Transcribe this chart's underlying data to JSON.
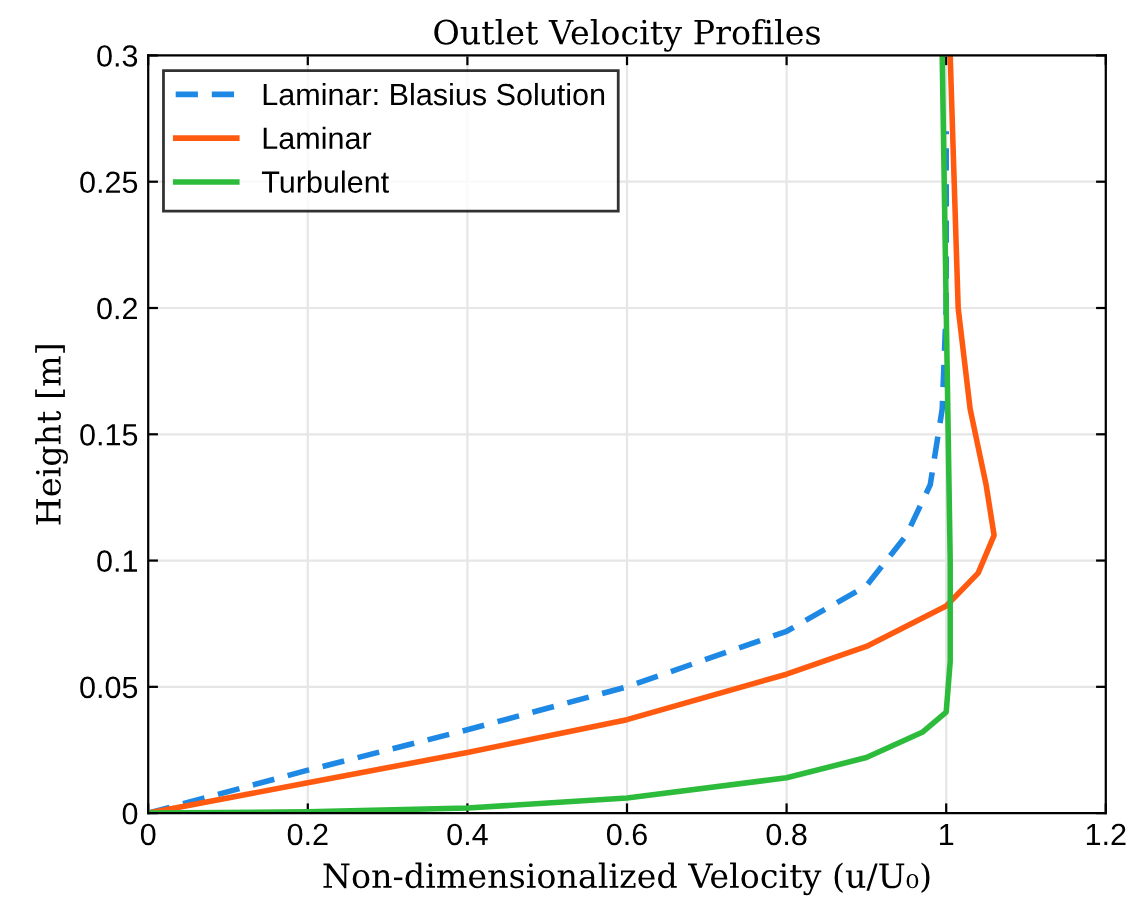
{
  "chart_data": {
    "type": "line",
    "title": "Outlet Velocity Profiles",
    "xlabel": "Non-dimensionalized Velocity (u/U₀)",
    "ylabel": "Height [m]",
    "xlim": [
      0,
      1.2
    ],
    "xticks": [
      0,
      0.2,
      0.4,
      0.6,
      0.8,
      1,
      1.2
    ],
    "ylim": [
      0,
      0.3
    ],
    "yticks": [
      0,
      0.05,
      0.1,
      0.15,
      0.2,
      0.25,
      0.3
    ],
    "grid": true,
    "legend": "top left",
    "series": [
      {
        "name": "Laminar: Blasius Solution",
        "color": "#1e88e5",
        "line_style": "dashed",
        "x": [
          0,
          0.2,
          0.4,
          0.6,
          0.8,
          0.9,
          0.95,
          0.98,
          0.995,
          1.0,
          1.0
        ],
        "values": [
          0,
          0.017,
          0.033,
          0.05,
          0.072,
          0.09,
          0.11,
          0.13,
          0.16,
          0.2,
          0.27
        ]
      },
      {
        "name": "Laminar",
        "color": "#ff5a0f",
        "line_style": "solid",
        "x": [
          0,
          0.2,
          0.4,
          0.6,
          0.8,
          0.9,
          1.0,
          1.04,
          1.06,
          1.05,
          1.03,
          1.015,
          1.01,
          1.005
        ],
        "values": [
          0,
          0.012,
          0.024,
          0.037,
          0.055,
          0.066,
          0.082,
          0.095,
          0.11,
          0.13,
          0.16,
          0.2,
          0.25,
          0.3
        ]
      },
      {
        "name": "Turbulent",
        "color": "#2dbb3c",
        "line_style": "solid",
        "x": [
          0,
          0.2,
          0.4,
          0.6,
          0.8,
          0.9,
          0.97,
          1.0,
          1.005,
          1.005,
          1.0,
          0.995
        ],
        "values": [
          0,
          0.0005,
          0.002,
          0.006,
          0.014,
          0.022,
          0.032,
          0.04,
          0.06,
          0.1,
          0.2,
          0.3
        ]
      }
    ]
  }
}
